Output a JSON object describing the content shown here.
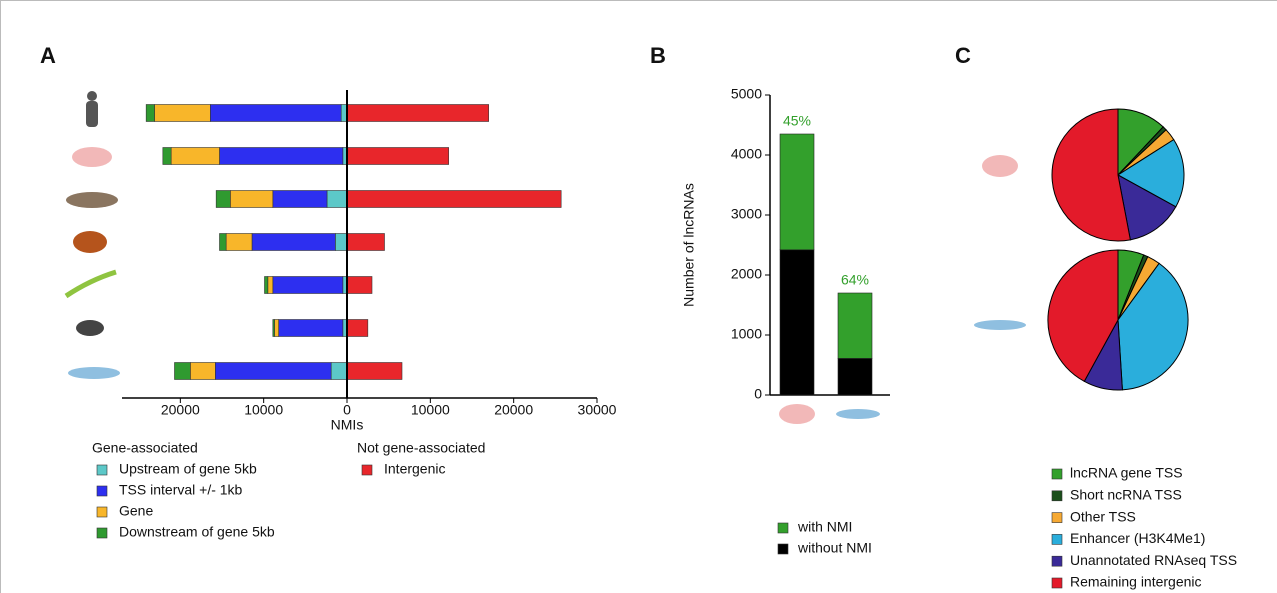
{
  "chart_data": [
    {
      "type": "bar",
      "panel": "A",
      "orientation": "horizontal",
      "stacked": true,
      "categories": [
        null,
        null,
        null,
        null,
        null,
        null,
        null
      ],
      "x_label": "NMIs",
      "legend_titles": [
        "Gene-associated",
        "Not gene-associated"
      ],
      "series": [
        {
          "name": "Upstream of gene 5kb",
          "color": "#5cc8c8",
          "values": [
            -700,
            -500,
            -2400,
            -1400,
            -500,
            -500,
            -1900
          ]
        },
        {
          "name": "TSS interval +/- 1kb",
          "color": "#2d2ff0",
          "values": [
            -15700,
            -14800,
            -6500,
            -10000,
            -8400,
            -7700,
            -13900
          ]
        },
        {
          "name": "Gene",
          "color": "#f8b62a",
          "values": [
            -6700,
            -5800,
            -5100,
            -3100,
            -600,
            -500,
            -3000
          ]
        },
        {
          "name": "Downstream of gene 5kb",
          "color": "#2f9a30",
          "values": [
            -1000,
            -1000,
            -1700,
            -800,
            -400,
            -200,
            -1900
          ]
        },
        {
          "name": "Intergenic",
          "color": "#e8262b",
          "values": [
            17000,
            12200,
            25700,
            4500,
            3000,
            2500,
            6600
          ]
        }
      ],
      "xlim": [
        -27000,
        30000
      ],
      "xticks": [
        {
          "value": -20000,
          "label": "20000"
        },
        {
          "value": -10000,
          "label": "10000"
        },
        0,
        10000,
        20000,
        30000
      ]
    },
    {
      "type": "bar",
      "panel": "B",
      "orientation": "vertical",
      "stacked": true,
      "categories": [
        null,
        null
      ],
      "y_label": "Number of lncRNAs",
      "series": [
        {
          "name": "without NMI",
          "color": "#000000",
          "values": [
            2420,
            610
          ]
        },
        {
          "name": "with NMI",
          "color": "#33a02c",
          "values": [
            1930,
            1090
          ]
        }
      ],
      "annotations": [
        "45%",
        "64%"
      ],
      "annotation_color": "#33a02c",
      "ylim": [
        0,
        5000
      ],
      "yticks": [
        0,
        1000,
        2000,
        3000,
        4000,
        5000
      ]
    },
    {
      "type": "pie",
      "panel": "C",
      "categories": [
        "lncRNA gene TSS",
        "Short ncRNA TSS",
        "Other TSS",
        "Enhancer (H3K4Me1)",
        "Unannotated RNAseq TSS",
        "Remaining intergenic"
      ],
      "colors": [
        "#33a02c",
        "#1b4f1b",
        "#f6a933",
        "#2aaedc",
        "#3a2a98",
        "#e31a2a"
      ],
      "pies": [
        {
          "values": [
            12,
            1,
            3,
            17,
            14,
            53
          ]
        },
        {
          "values": [
            6,
            1,
            3,
            39,
            9,
            42
          ]
        }
      ]
    }
  ]
}
